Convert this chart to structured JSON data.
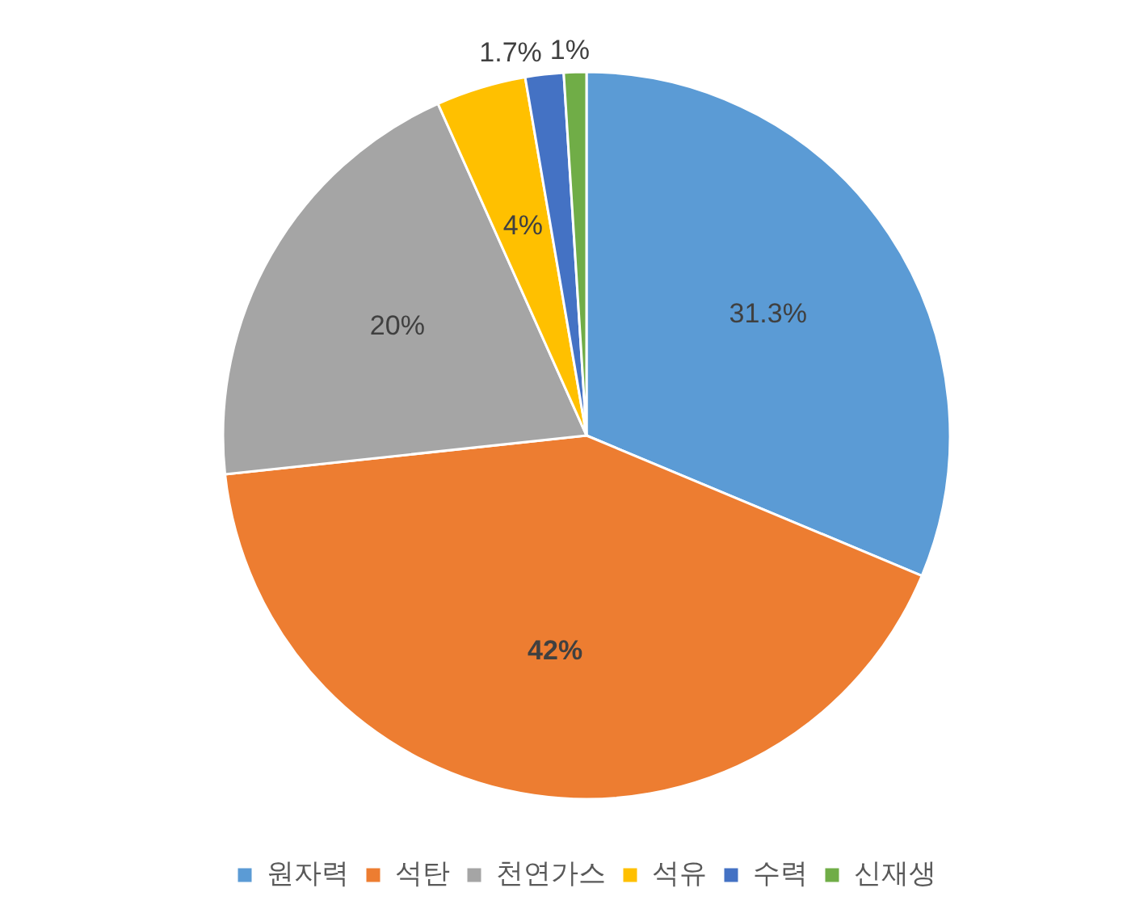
{
  "chart_data": {
    "type": "pie",
    "categories": [
      "원자력",
      "석탄",
      "천연가스",
      "석유",
      "수력",
      "신재생"
    ],
    "values": [
      31.3,
      42,
      20,
      4,
      1.7,
      1
    ],
    "colors": [
      "#5b9bd5",
      "#ed7d31",
      "#a5a5a5",
      "#ffc000",
      "#4472c4",
      "#70ad47"
    ],
    "value_labels": [
      "31.3%",
      "42%",
      "20%",
      "4%",
      "1.7%",
      "1%"
    ],
    "legend": "bottom"
  }
}
